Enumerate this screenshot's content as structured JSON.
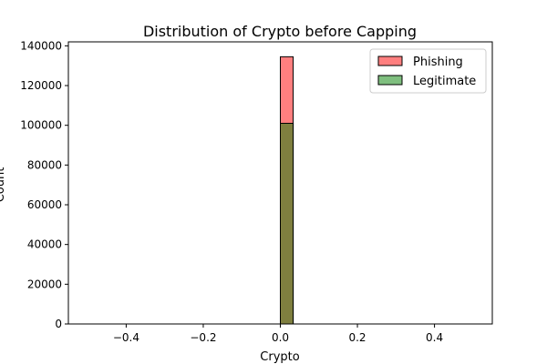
{
  "chart_data": {
    "type": "bar",
    "title": "Distribution of Crypto before Capping",
    "xlabel": "Crypto",
    "ylabel": "Count",
    "xlim": [
      -0.55,
      0.55
    ],
    "ylim": [
      0,
      142000
    ],
    "xticks": [
      -0.4,
      -0.2,
      0.0,
      0.2,
      0.4
    ],
    "xtick_labels": [
      "−0.4",
      "−0.2",
      "0.0",
      "0.2",
      "0.4"
    ],
    "yticks": [
      0,
      20000,
      40000,
      60000,
      80000,
      100000,
      120000,
      140000
    ],
    "ytick_labels": [
      "0",
      "20000",
      "40000",
      "60000",
      "80000",
      "100000",
      "120000",
      "140000"
    ],
    "bin_range": [
      -0.5,
      0.5
    ],
    "bin_count": 30,
    "grid": false,
    "legend_position": "top-right",
    "series": [
      {
        "name": "Phishing",
        "color": "#ff0000",
        "alpha": 0.5,
        "values": [
          {
            "bin_start": 0.0,
            "bin_end": 0.0333,
            "count": 134500
          }
        ]
      },
      {
        "name": "Legitimate",
        "color": "#008000",
        "alpha": 0.5,
        "values": [
          {
            "bin_start": 0.0,
            "bin_end": 0.0333,
            "count": 101000
          }
        ]
      }
    ]
  }
}
